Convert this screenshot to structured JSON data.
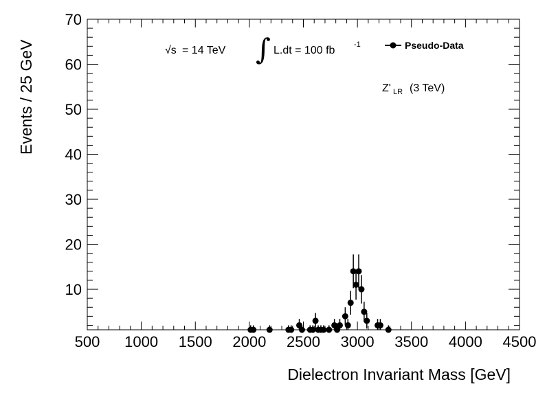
{
  "chart_data": {
    "type": "scatter",
    "title": "",
    "xlabel": "Dielectron Invariant Mass [GeV]",
    "ylabel": "Events / 25 GeV",
    "xlim": [
      500,
      4500
    ],
    "ylim": [
      1,
      70
    ],
    "x_ticks": [
      500,
      1000,
      1500,
      2000,
      2500,
      3000,
      3500,
      4000,
      4500
    ],
    "y_ticks": [
      10,
      20,
      30,
      40,
      50,
      60,
      70
    ],
    "annotations": {
      "energy_sqrt": "√s",
      "energy_rest": "= 14 TeV",
      "integral_sign": "∫",
      "lumi_main": "L.dt = 100 fb",
      "lumi_exp": "-1",
      "model_main": "Z'",
      "model_sub": "LR",
      "model_rest": "(3 TeV)"
    },
    "legend": {
      "entries": [
        "Pseudo-Data"
      ],
      "placement": "top-right"
    },
    "series": [
      {
        "name": "Pseudo-Data",
        "points": [
          {
            "x": 2012,
            "y": 1
          },
          {
            "x": 2037,
            "y": 1
          },
          {
            "x": 2187,
            "y": 1
          },
          {
            "x": 2362,
            "y": 1
          },
          {
            "x": 2387,
            "y": 1
          },
          {
            "x": 2462,
            "y": 2
          },
          {
            "x": 2487,
            "y": 1
          },
          {
            "x": 2562,
            "y": 1
          },
          {
            "x": 2587,
            "y": 1
          },
          {
            "x": 2612,
            "y": 3
          },
          {
            "x": 2637,
            "y": 1
          },
          {
            "x": 2662,
            "y": 1
          },
          {
            "x": 2687,
            "y": 1
          },
          {
            "x": 2737,
            "y": 1
          },
          {
            "x": 2787,
            "y": 2
          },
          {
            "x": 2812,
            "y": 1
          },
          {
            "x": 2837,
            "y": 2
          },
          {
            "x": 2887,
            "y": 4
          },
          {
            "x": 2912,
            "y": 2
          },
          {
            "x": 2937,
            "y": 7
          },
          {
            "x": 2962,
            "y": 14
          },
          {
            "x": 2987,
            "y": 11
          },
          {
            "x": 3012,
            "y": 14
          },
          {
            "x": 3037,
            "y": 10
          },
          {
            "x": 3062,
            "y": 5
          },
          {
            "x": 3087,
            "y": 3
          },
          {
            "x": 3187,
            "y": 2
          },
          {
            "x": 3212,
            "y": 2
          },
          {
            "x": 3287,
            "y": 1
          }
        ]
      }
    ]
  }
}
